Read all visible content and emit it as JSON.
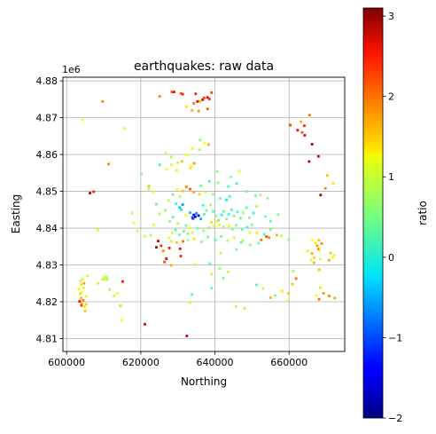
{
  "chart_data": {
    "type": "scatter",
    "title": "earthquakes: raw data",
    "xlabel": "Northing",
    "ylabel": "Easting",
    "y_offset_text": "1e6",
    "xlim": [
      599000,
      675000
    ],
    "ylim": [
      4806500,
      4881000
    ],
    "xticks": [
      600000,
      620000,
      640000,
      660000
    ],
    "xtick_labels": [
      "600000",
      "620000",
      "640000",
      "660000"
    ],
    "yticks": [
      4810000,
      4820000,
      4830000,
      4840000,
      4850000,
      4860000,
      4870000,
      4880000
    ],
    "ytick_labels": [
      "4.81",
      "4.82",
      "4.83",
      "4.84",
      "4.85",
      "4.86",
      "4.87",
      "4.88"
    ],
    "y_multiplier": 1000000,
    "grid": true,
    "colormap": "jet",
    "colorbar": {
      "label": "ratio",
      "range": [
        -2,
        3.1
      ],
      "ticks": [
        -2,
        -1,
        0,
        1,
        2,
        3
      ],
      "tick_labels": [
        "−2",
        "−1",
        "0",
        "1",
        "2",
        "3"
      ]
    },
    "points": [
      [
        603700,
        4822200,
        1.4
      ],
      [
        603900,
        4821000,
        1.6
      ],
      [
        604200,
        4822700,
        1.2
      ],
      [
        604500,
        4820400,
        1.8
      ],
      [
        603500,
        4820100,
        2.4
      ],
      [
        604100,
        4819500,
        1.5
      ],
      [
        604800,
        4818700,
        1.3
      ],
      [
        605000,
        4817500,
        1.5
      ],
      [
        603300,
        4823400,
        1.1
      ],
      [
        604600,
        4823800,
        0.9
      ],
      [
        605200,
        4821500,
        1.0
      ],
      [
        603800,
        4825700,
        0.8
      ],
      [
        604300,
        4826200,
        1.0
      ],
      [
        605600,
        4827000,
        0.9
      ],
      [
        603900,
        4824700,
        1.4
      ],
      [
        604700,
        4825000,
        1.7
      ],
      [
        605300,
        4819300,
        1.4
      ],
      [
        604000,
        4819000,
        2.2
      ],
      [
        608500,
        4825000,
        0.9
      ],
      [
        609700,
        4826100,
        0.8
      ],
      [
        610800,
        4826700,
        0.7
      ],
      [
        610300,
        4826100,
        0.9
      ],
      [
        611600,
        4823300,
        0.8
      ],
      [
        612800,
        4821600,
        0.8
      ],
      [
        613700,
        4822300,
        1.2
      ],
      [
        614500,
        4818900,
        1.4
      ],
      [
        615100,
        4825500,
        2.4
      ],
      [
        614900,
        4815000,
        1.2
      ],
      [
        610100,
        4826600,
        1.0
      ],
      [
        611000,
        4826000,
        0.8
      ],
      [
        604300,
        4869400,
        1.2
      ],
      [
        609700,
        4874400,
        1.8
      ],
      [
        611300,
        4857400,
        1.8
      ],
      [
        606300,
        4849500,
        2.8
      ],
      [
        607300,
        4849900,
        2.3
      ],
      [
        608400,
        4839500,
        1.3
      ],
      [
        615600,
        4867100,
        1.0
      ],
      [
        621100,
        4813900,
        2.5
      ],
      [
        625100,
        4875800,
        1.8
      ],
      [
        628400,
        4877000,
        2.1
      ],
      [
        629000,
        4877000,
        2.4
      ],
      [
        630800,
        4876600,
        2.0
      ],
      [
        634800,
        4876500,
        2.3
      ],
      [
        635300,
        4874400,
        2.5
      ],
      [
        636700,
        4874900,
        2.7
      ],
      [
        637100,
        4875400,
        2.1
      ],
      [
        638000,
        4875500,
        2.6
      ],
      [
        638500,
        4875100,
        2.3
      ],
      [
        634300,
        4873900,
        1.9
      ],
      [
        633800,
        4872000,
        1.6
      ],
      [
        635600,
        4871800,
        1.7
      ],
      [
        638000,
        4872400,
        2.0
      ],
      [
        639100,
        4876800,
        2.2
      ],
      [
        636000,
        4874400,
        1.5
      ],
      [
        632300,
        4873000,
        1.3
      ],
      [
        631300,
        4876400,
        2.3
      ],
      [
        632400,
        4810700,
        2.7
      ],
      [
        633800,
        4822000,
        0.4
      ],
      [
        633300,
        4819800,
        1.3
      ],
      [
        639100,
        4823700,
        0.3
      ],
      [
        645700,
        4818700,
        0.9
      ],
      [
        648000,
        4818200,
        0.8
      ],
      [
        651200,
        4824600,
        0.2
      ],
      [
        653000,
        4823600,
        0.8
      ],
      [
        655000,
        4821100,
        1.6
      ],
      [
        658100,
        4822900,
        1.3
      ],
      [
        656200,
        4821700,
        0.5
      ],
      [
        659800,
        4822300,
        1.4
      ],
      [
        659600,
        4820300,
        1.0
      ],
      [
        660900,
        4824800,
        1.5
      ],
      [
        661900,
        4826300,
        1.9
      ],
      [
        661100,
        4828300,
        0.7
      ],
      [
        659900,
        4836900,
        0.6
      ],
      [
        657900,
        4837900,
        0.8
      ],
      [
        665000,
        4833800,
        1.1
      ],
      [
        666200,
        4833100,
        1.6
      ],
      [
        666800,
        4832000,
        1.4
      ],
      [
        665900,
        4831300,
        1.0
      ],
      [
        667600,
        4835200,
        1.7
      ],
      [
        668000,
        4836700,
        1.5
      ],
      [
        668800,
        4835800,
        1.8
      ],
      [
        667100,
        4835900,
        1.3
      ],
      [
        666300,
        4836800,
        1.2
      ],
      [
        667900,
        4834300,
        1.9
      ],
      [
        668200,
        4833800,
        1.1
      ],
      [
        666700,
        4830600,
        1.6
      ],
      [
        668400,
        4831600,
        1.0
      ],
      [
        671200,
        4833200,
        1.5
      ],
      [
        671700,
        4832000,
        1.2
      ],
      [
        670800,
        4831300,
        1.6
      ],
      [
        672100,
        4832600,
        0.9
      ],
      [
        668100,
        4828700,
        1.5
      ],
      [
        669300,
        4822300,
        1.7
      ],
      [
        668400,
        4823800,
        1.3
      ],
      [
        670800,
        4821600,
        1.8
      ],
      [
        672300,
        4821000,
        1.6
      ],
      [
        667300,
        4821700,
        1.2
      ],
      [
        668100,
        4820700,
        1.9
      ],
      [
        670300,
        4854300,
        1.5
      ],
      [
        671900,
        4852200,
        1.3
      ],
      [
        668500,
        4849000,
        2.9
      ],
      [
        669800,
        4850800,
        1.8
      ],
      [
        660300,
        4868000,
        2.2
      ],
      [
        662300,
        4866600,
        2.5
      ],
      [
        663500,
        4866000,
        2.1
      ],
      [
        664100,
        4867800,
        2.3
      ],
      [
        665500,
        4870700,
        1.9
      ],
      [
        664200,
        4865200,
        2.6
      ],
      [
        666200,
        4862800,
        2.9
      ],
      [
        665400,
        4858100,
        2.8
      ],
      [
        667900,
        4859500,
        2.7
      ],
      [
        663200,
        4868900,
        1.6
      ],
      [
        654200,
        4848100,
        0.6
      ],
      [
        656700,
        4838100,
        1.6
      ],
      [
        652500,
        4836800,
        1.9
      ],
      [
        653900,
        4837700,
        2.1
      ],
      [
        654600,
        4837400,
        1.8
      ],
      [
        651300,
        4838700,
        1.3
      ],
      [
        649400,
        4838800,
        1.0
      ],
      [
        647500,
        4836600,
        0.7
      ],
      [
        645800,
        4834200,
        0.4
      ],
      [
        641500,
        4833200,
        0.8
      ],
      [
        638600,
        4830400,
        0.3
      ],
      [
        634500,
        4830100,
        0.9
      ],
      [
        630800,
        4832400,
        2.3
      ],
      [
        626900,
        4831700,
        2.6
      ],
      [
        628200,
        4829900,
        1.6
      ],
      [
        626400,
        4830800,
        2.1
      ],
      [
        627700,
        4834600,
        2.4
      ],
      [
        626100,
        4833800,
        1.8
      ],
      [
        624200,
        4834800,
        2.8
      ],
      [
        624700,
        4836500,
        2.7
      ],
      [
        625500,
        4835200,
        2.3
      ],
      [
        630600,
        4834400,
        2.5
      ],
      [
        631400,
        4836400,
        1.9
      ],
      [
        629700,
        4836100,
        1.5
      ],
      [
        622700,
        4838100,
        0.7
      ],
      [
        623500,
        4840900,
        1.0
      ],
      [
        621100,
        4837800,
        0.9
      ],
      [
        632200,
        4843400,
        1.2
      ],
      [
        630500,
        4845600,
        -0.4
      ],
      [
        631300,
        4846400,
        -0.6
      ],
      [
        630900,
        4845000,
        -0.2
      ],
      [
        629500,
        4846600,
        0.1
      ],
      [
        628700,
        4843000,
        0.3
      ],
      [
        627800,
        4841800,
        0.6
      ],
      [
        630000,
        4841300,
        0.8
      ],
      [
        632200,
        4840700,
        0.5
      ],
      [
        633900,
        4842900,
        -0.9
      ],
      [
        634300,
        4843600,
        -1.3
      ],
      [
        634700,
        4843100,
        -1.6
      ],
      [
        634100,
        4842600,
        -1.1
      ],
      [
        635000,
        4844000,
        -0.7
      ],
      [
        633300,
        4844200,
        -0.4
      ],
      [
        635600,
        4843400,
        -1.4
      ],
      [
        636200,
        4842500,
        -0.5
      ],
      [
        637100,
        4843800,
        0.2
      ],
      [
        637700,
        4844800,
        0.4
      ],
      [
        636800,
        4846200,
        0.1
      ],
      [
        638800,
        4846300,
        0.7
      ],
      [
        639500,
        4844500,
        0.3
      ],
      [
        640200,
        4843300,
        0.5
      ],
      [
        641000,
        4842100,
        0.2
      ],
      [
        641800,
        4843600,
        -0.1
      ],
      [
        642400,
        4844500,
        0.4
      ],
      [
        643100,
        4842500,
        0.6
      ],
      [
        643700,
        4843800,
        0.1
      ],
      [
        644500,
        4845000,
        0.3
      ],
      [
        645200,
        4843300,
        0.5
      ],
      [
        646100,
        4844400,
        0.2
      ],
      [
        646900,
        4842700,
        0.4
      ],
      [
        647600,
        4844200,
        0.7
      ],
      [
        648500,
        4845600,
        0.3
      ],
      [
        649300,
        4842800,
        0.6
      ],
      [
        650400,
        4844100,
        0.1
      ],
      [
        651200,
        4845900,
        0.8
      ],
      [
        641200,
        4840900,
        1.1
      ],
      [
        640600,
        4841900,
        1.3
      ],
      [
        639800,
        4840500,
        0.9
      ],
      [
        639100,
        4841600,
        1.4
      ],
      [
        638400,
        4840100,
        0.7
      ],
      [
        642300,
        4840400,
        0.8
      ],
      [
        643800,
        4840600,
        1.0
      ],
      [
        644700,
        4839700,
        0.4
      ],
      [
        645700,
        4840800,
        0.6
      ],
      [
        647300,
        4839600,
        0.3
      ],
      [
        648700,
        4840200,
        0.2
      ],
      [
        650000,
        4840900,
        0.5
      ],
      [
        636900,
        4839300,
        0.7
      ],
      [
        635300,
        4840000,
        0.3
      ],
      [
        634000,
        4838800,
        0.9
      ],
      [
        633200,
        4840100,
        1.2
      ],
      [
        632700,
        4838500,
        0.5
      ],
      [
        631600,
        4839200,
        0.4
      ],
      [
        630400,
        4838200,
        0.6
      ],
      [
        629400,
        4839500,
        0.2
      ],
      [
        628500,
        4838700,
        0.9
      ],
      [
        627600,
        4837300,
        1.1
      ],
      [
        628300,
        4836400,
        0.8
      ],
      [
        632700,
        4836700,
        0.7
      ],
      [
        634400,
        4837100,
        1.3
      ],
      [
        636400,
        4836300,
        0.6
      ],
      [
        638100,
        4837600,
        0.4
      ],
      [
        640100,
        4836800,
        0.3
      ],
      [
        641700,
        4837700,
        0.5
      ],
      [
        643400,
        4836600,
        0.8
      ],
      [
        645200,
        4837400,
        0.9
      ],
      [
        647100,
        4836100,
        0.4
      ],
      [
        649500,
        4835400,
        0.6
      ],
      [
        651700,
        4835900,
        0.4
      ],
      [
        653300,
        4838300,
        0.2
      ],
      [
        655000,
        4839600,
        0.5
      ],
      [
        644000,
        4848600,
        0.1
      ],
      [
        643100,
        4847700,
        -0.2
      ],
      [
        641400,
        4848100,
        0.3
      ],
      [
        639500,
        4849200,
        0.6
      ],
      [
        637400,
        4849900,
        0.9
      ],
      [
        635800,
        4849200,
        1.4
      ],
      [
        634300,
        4849800,
        1.7
      ],
      [
        633300,
        4850600,
        2.0
      ],
      [
        632300,
        4851200,
        1.8
      ],
      [
        631300,
        4850100,
        1.5
      ],
      [
        629800,
        4850500,
        1.1
      ],
      [
        630600,
        4848600,
        0.8
      ],
      [
        628700,
        4849100,
        0.4
      ],
      [
        627500,
        4847500,
        0.9
      ],
      [
        626600,
        4844900,
        0.6
      ],
      [
        625100,
        4843900,
        0.8
      ],
      [
        624200,
        4846500,
        0.3
      ],
      [
        623400,
        4849800,
        1.1
      ],
      [
        622200,
        4851400,
        1.5
      ],
      [
        636200,
        4851500,
        0.4
      ],
      [
        638500,
        4852700,
        0.3
      ],
      [
        640800,
        4852300,
        0.6
      ],
      [
        643600,
        4851300,
        0.2
      ],
      [
        645900,
        4852100,
        0.1
      ],
      [
        648500,
        4850000,
        0.4
      ],
      [
        652300,
        4849000,
        0.7
      ],
      [
        620200,
        4854700,
        0.5
      ],
      [
        622100,
        4850600,
        0.8
      ],
      [
        627000,
        4856000,
        1.1
      ],
      [
        628300,
        4857200,
        0.9
      ],
      [
        629700,
        4855700,
        1.3
      ],
      [
        631100,
        4858100,
        1.5
      ],
      [
        632500,
        4859800,
        1.2
      ],
      [
        633900,
        4861600,
        1.0
      ],
      [
        635800,
        4861300,
        0.8
      ],
      [
        637100,
        4863100,
        1.2
      ],
      [
        638300,
        4862700,
        1.6
      ],
      [
        636000,
        4863900,
        0.6
      ],
      [
        634400,
        4857600,
        1.7
      ],
      [
        633400,
        4856300,
        1.3
      ],
      [
        630000,
        4857800,
        0.9
      ],
      [
        628200,
        4859300,
        0.7
      ],
      [
        626800,
        4860300,
        1.0
      ],
      [
        625100,
        4857200,
        0.2
      ],
      [
        633600,
        4856900,
        1.2
      ],
      [
        640600,
        4855400,
        0.5
      ],
      [
        644300,
        4853900,
        0.6
      ],
      [
        646600,
        4855500,
        1.0
      ],
      [
        651000,
        4848800,
        0.4
      ],
      [
        653600,
        4843200,
        0.5
      ],
      [
        655000,
        4841900,
        0.3
      ],
      [
        657100,
        4843700,
        0.6
      ],
      [
        639100,
        4827500,
        0.8
      ],
      [
        641300,
        4829000,
        0.6
      ],
      [
        643500,
        4828100,
        0.9
      ],
      [
        642300,
        4826400,
        0.5
      ],
      [
        617700,
        4844100,
        0.8
      ],
      [
        618200,
        4841400,
        1.1
      ],
      [
        619100,
        4839200,
        0.9
      ]
    ]
  }
}
